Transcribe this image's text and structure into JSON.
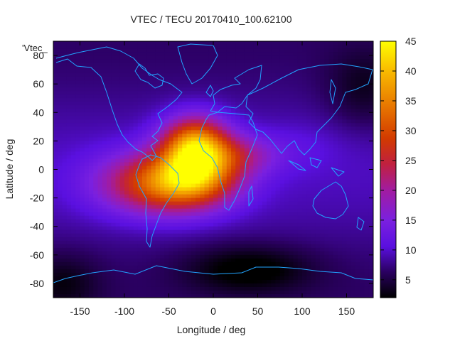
{
  "chart_data": {
    "type": "heatmap",
    "title": "VTEC / TECU 20170410_100.62100",
    "xlabel": "Longitude / deg",
    "ylabel": "Latitude / deg",
    "xlim": [
      -180,
      180
    ],
    "ylim": [
      -90,
      90
    ],
    "x_ticks": [
      -150,
      -100,
      -50,
      0,
      50,
      100,
      150
    ],
    "y_ticks": [
      -80,
      -60,
      -40,
      -20,
      0,
      20,
      40,
      60,
      80
    ],
    "x_tick_labels": [
      "-150",
      "-100",
      "-50",
      "0",
      "50",
      "100",
      "150"
    ],
    "y_tick_labels": [
      "-80",
      "-60",
      "-40",
      "-20",
      "0",
      "20",
      "40",
      "60",
      "80"
    ],
    "legend_key": "'Vtec_",
    "colorbar": {
      "min": 2,
      "max": 45,
      "ticks": [
        5,
        10,
        15,
        20,
        25,
        30,
        35,
        40,
        45
      ],
      "tick_labels": [
        "5",
        "10",
        "15",
        "20",
        "25",
        "30",
        "35",
        "40",
        "45"
      ],
      "palette": "black-blue-violet-red-orange-yellow (gnuplot pm3d)"
    },
    "background_level": 8,
    "features": [
      {
        "lon": -20,
        "lat": 17,
        "peak": 40,
        "spread_lon": 26,
        "spread_lat": 14
      },
      {
        "lon": -60,
        "lat": -10,
        "peak": 32,
        "spread_lon": 48,
        "spread_lat": 15
      },
      {
        "lon": -20,
        "lat": -5,
        "peak": 28,
        "spread_lon": 34,
        "spread_lat": 14
      },
      {
        "lon": 30,
        "lat": 10,
        "peak": 18,
        "spread_lon": 30,
        "spread_lat": 10
      },
      {
        "lon": 95,
        "lat": 15,
        "peak": 10,
        "spread_lon": 35,
        "spread_lat": 12
      }
    ],
    "low_regions": [
      {
        "lon": 40,
        "lat": -70,
        "depth": 6,
        "spread_lon": 50,
        "spread_lat": 12
      },
      {
        "lon": 170,
        "lat": 55,
        "depth": 4,
        "spread_lon": 30,
        "spread_lat": 20
      },
      {
        "lon": -170,
        "lat": -80,
        "depth": 4,
        "spread_lon": 30,
        "spread_lat": 15
      }
    ],
    "overlay": "coastlines"
  }
}
